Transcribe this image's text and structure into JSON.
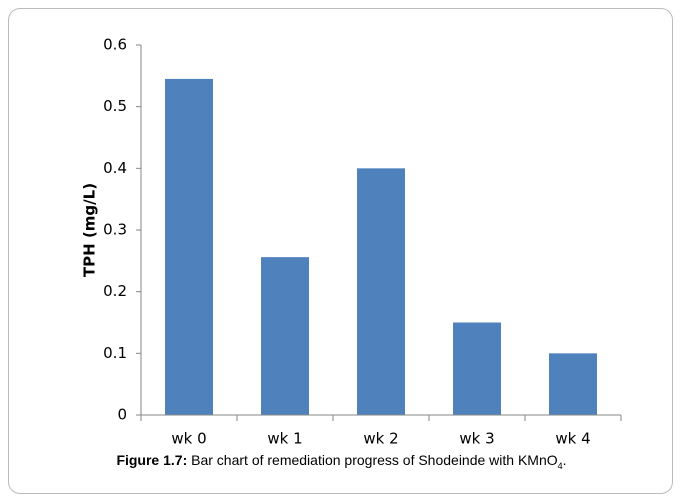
{
  "chart_data": {
    "type": "bar",
    "y_label": "TPH (mg/L)",
    "categories": [
      "wk 0",
      "wk 1",
      "wk 2",
      "wk 3",
      "wk 4"
    ],
    "values": [
      0.545,
      0.256,
      0.4,
      0.15,
      0.1
    ],
    "color": "#4f81bd",
    "ylim": [
      0,
      0.6
    ],
    "yticks": [
      0,
      0.1,
      0.2,
      0.3,
      0.4,
      0.5,
      0.6
    ],
    "grid": false,
    "caption": {
      "label": "Figure 1.7:",
      "text": " Bar chart of remediation progress of Shodeinde with KMnO",
      "subscript": "4",
      "end": "."
    }
  }
}
